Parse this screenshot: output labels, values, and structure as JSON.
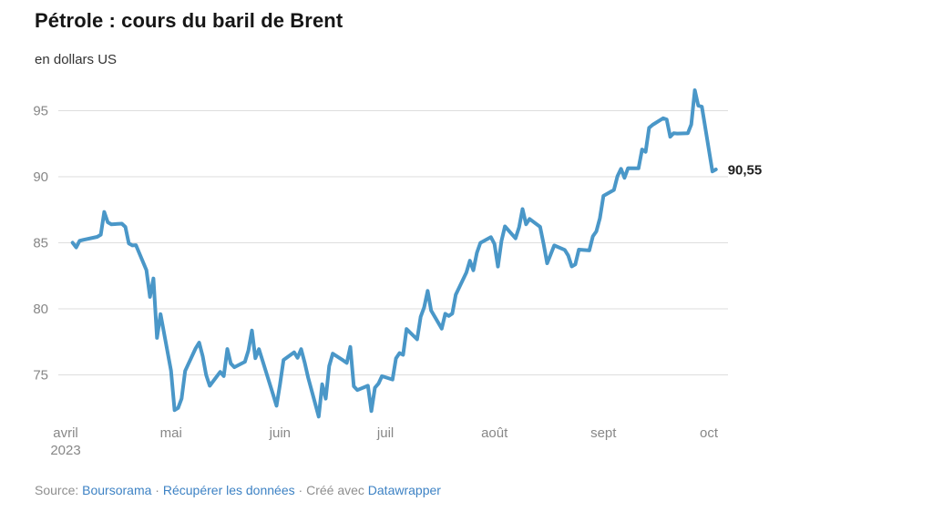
{
  "header": {
    "title": "Pétrole : cours du baril de Brent",
    "subtitle": "en dollars US"
  },
  "chart_data": {
    "type": "line",
    "title": "Pétrole : cours du baril de Brent",
    "subtitle": "en dollars US",
    "ylabel": "dollars US",
    "xlabel": "",
    "grid": true,
    "legend": "none",
    "line_color": "#4a97c8",
    "grid_color": "#dedede",
    "axis_text_color": "#878787",
    "end_label_color": "#1f1f1f",
    "ylim": [
      71.5,
      97
    ],
    "y_ticks": [
      75,
      80,
      85,
      90,
      95
    ],
    "x_ticks": [
      {
        "label": "avril",
        "sublabel": "2023",
        "day": 0
      },
      {
        "label": "mai",
        "day": 30
      },
      {
        "label": "juin",
        "day": 61
      },
      {
        "label": "juil",
        "day": 91
      },
      {
        "label": "août",
        "day": 122
      },
      {
        "label": "sept",
        "day": 153
      },
      {
        "label": "oct",
        "day": 183
      }
    ],
    "end_label": "90,55",
    "last_value": 90.55,
    "series": [
      {
        "name": "Cours du baril de Brent (USD)",
        "points": [
          [
            2,
            85.01
          ],
          [
            3,
            84.65
          ],
          [
            4,
            85.15
          ],
          [
            5,
            85.22
          ],
          [
            9,
            85.45
          ],
          [
            10,
            85.61
          ],
          [
            11,
            87.33
          ],
          [
            12,
            86.55
          ],
          [
            13,
            86.4
          ],
          [
            16,
            86.45
          ],
          [
            17,
            86.2
          ],
          [
            18,
            84.95
          ],
          [
            19,
            84.8
          ],
          [
            20,
            84.82
          ],
          [
            23,
            82.93
          ],
          [
            24,
            80.9
          ],
          [
            25,
            82.3
          ],
          [
            26,
            77.8
          ],
          [
            27,
            79.6
          ],
          [
            30,
            75.32
          ],
          [
            31,
            72.33
          ],
          [
            32,
            72.5
          ],
          [
            33,
            73.2
          ],
          [
            34,
            75.3
          ],
          [
            37,
            77.01
          ],
          [
            38,
            77.44
          ],
          [
            39,
            76.41
          ],
          [
            40,
            74.98
          ],
          [
            41,
            74.17
          ],
          [
            44,
            75.23
          ],
          [
            45,
            74.91
          ],
          [
            46,
            76.96
          ],
          [
            47,
            75.86
          ],
          [
            48,
            75.58
          ],
          [
            51,
            75.99
          ],
          [
            52,
            76.84
          ],
          [
            53,
            78.36
          ],
          [
            54,
            76.26
          ],
          [
            55,
            76.95
          ],
          [
            59,
            73.54
          ],
          [
            60,
            72.66
          ],
          [
            61,
            74.28
          ],
          [
            62,
            76.13
          ],
          [
            65,
            76.71
          ],
          [
            66,
            76.29
          ],
          [
            67,
            76.95
          ],
          [
            68,
            75.96
          ],
          [
            69,
            74.79
          ],
          [
            72,
            71.84
          ],
          [
            73,
            74.29
          ],
          [
            74,
            73.2
          ],
          [
            75,
            75.67
          ],
          [
            76,
            76.61
          ],
          [
            79,
            76.09
          ],
          [
            80,
            75.9
          ],
          [
            81,
            77.12
          ],
          [
            82,
            74.14
          ],
          [
            83,
            73.85
          ],
          [
            86,
            74.18
          ],
          [
            87,
            72.26
          ],
          [
            88,
            74.03
          ],
          [
            89,
            74.34
          ],
          [
            90,
            74.9
          ],
          [
            93,
            74.65
          ],
          [
            94,
            76.25
          ],
          [
            95,
            76.65
          ],
          [
            96,
            76.52
          ],
          [
            97,
            78.47
          ],
          [
            100,
            77.69
          ],
          [
            101,
            79.4
          ],
          [
            102,
            80.11
          ],
          [
            103,
            81.36
          ],
          [
            104,
            79.87
          ],
          [
            107,
            78.5
          ],
          [
            108,
            79.63
          ],
          [
            109,
            79.46
          ],
          [
            110,
            79.64
          ],
          [
            111,
            81.07
          ],
          [
            114,
            82.74
          ],
          [
            115,
            83.64
          ],
          [
            116,
            82.92
          ],
          [
            117,
            84.24
          ],
          [
            118,
            84.99
          ],
          [
            121,
            85.43
          ],
          [
            122,
            84.91
          ],
          [
            123,
            83.2
          ],
          [
            124,
            85.14
          ],
          [
            125,
            86.24
          ],
          [
            128,
            85.34
          ],
          [
            129,
            86.17
          ],
          [
            130,
            87.55
          ],
          [
            131,
            86.4
          ],
          [
            132,
            86.81
          ],
          [
            135,
            86.21
          ],
          [
            136,
            84.89
          ],
          [
            137,
            83.45
          ],
          [
            138,
            84.12
          ],
          [
            139,
            84.8
          ],
          [
            142,
            84.46
          ],
          [
            143,
            84.03
          ],
          [
            144,
            83.21
          ],
          [
            145,
            83.36
          ],
          [
            146,
            84.48
          ],
          [
            149,
            84.42
          ],
          [
            150,
            85.49
          ],
          [
            151,
            85.86
          ],
          [
            152,
            86.86
          ],
          [
            153,
            88.55
          ],
          [
            156,
            89.0
          ],
          [
            157,
            90.04
          ],
          [
            158,
            90.6
          ],
          [
            159,
            89.92
          ],
          [
            160,
            90.65
          ],
          [
            163,
            90.64
          ],
          [
            164,
            92.06
          ],
          [
            165,
            91.88
          ],
          [
            166,
            93.7
          ],
          [
            167,
            93.93
          ],
          [
            170,
            94.43
          ],
          [
            171,
            94.34
          ],
          [
            172,
            93.03
          ],
          [
            173,
            93.3
          ],
          [
            174,
            93.27
          ],
          [
            177,
            93.29
          ],
          [
            178,
            93.96
          ],
          [
            179,
            96.55
          ],
          [
            180,
            95.38
          ],
          [
            181,
            95.31
          ],
          [
            184,
            90.4
          ],
          [
            185,
            90.55
          ]
        ]
      }
    ]
  },
  "footer": {
    "source_prefix": "Source: ",
    "source_link": "Boursorama",
    "sep1": " · ",
    "data_link": "Récupérer les données",
    "sep2": " · ",
    "credit_prefix": "Créé avec ",
    "credit_link": "Datawrapper",
    "link_color": "#3d82c4",
    "text_color": "#8e8e8e"
  }
}
